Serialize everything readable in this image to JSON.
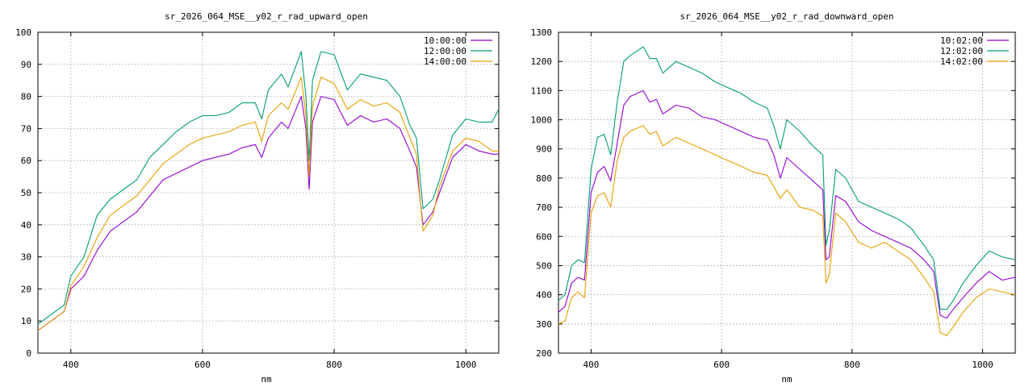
{
  "chart_data": [
    {
      "type": "line",
      "title": "sr_2026_064_MSE__y02_r_rad_upward_open",
      "xlabel": "nm",
      "ylabel": "",
      "xlim": [
        350,
        1050
      ],
      "ylim": [
        0,
        100
      ],
      "xticks": [
        400,
        600,
        800,
        1000
      ],
      "yticks": [
        0,
        10,
        20,
        30,
        40,
        50,
        60,
        70,
        80,
        90,
        100
      ],
      "grid": true,
      "legend": "top-right",
      "series": [
        {
          "name": "10:00:00",
          "color": "#9400d3",
          "x": [
            350,
            370,
            390,
            400,
            420,
            440,
            460,
            480,
            500,
            520,
            540,
            560,
            580,
            600,
            620,
            640,
            660,
            680,
            690,
            700,
            720,
            730,
            750,
            757,
            762,
            767,
            780,
            800,
            820,
            840,
            860,
            880,
            900,
            915,
            925,
            935,
            950,
            960,
            980,
            1000,
            1020,
            1040,
            1050
          ],
          "y": [
            7,
            10,
            13,
            20,
            24,
            32,
            38,
            41,
            44,
            49,
            54,
            56,
            58,
            60,
            61,
            62,
            64,
            65,
            61,
            67,
            72,
            70,
            80,
            70,
            51,
            72,
            80,
            79,
            71,
            74,
            72,
            73,
            70,
            63,
            58,
            40,
            44,
            50,
            61,
            65,
            63,
            62,
            62
          ]
        },
        {
          "name": "12:00:00",
          "color": "#009e73",
          "x": [
            350,
            370,
            390,
            400,
            420,
            440,
            460,
            480,
            500,
            520,
            540,
            560,
            580,
            600,
            620,
            640,
            660,
            680,
            690,
            700,
            720,
            730,
            750,
            757,
            762,
            767,
            780,
            800,
            820,
            840,
            860,
            880,
            900,
            915,
            925,
            935,
            950,
            960,
            980,
            1000,
            1020,
            1040,
            1050
          ],
          "y": [
            9,
            12,
            15,
            24,
            30,
            43,
            48,
            51,
            54,
            61,
            65,
            69,
            72,
            74,
            74,
            75,
            78,
            78,
            73,
            82,
            87,
            83,
            94,
            80,
            60,
            85,
            94,
            93,
            82,
            87,
            86,
            85,
            80,
            71,
            67,
            45,
            48,
            54,
            68,
            73,
            72,
            72,
            76
          ]
        },
        {
          "name": "14:00:00",
          "color": "#e69f00",
          "x": [
            350,
            370,
            390,
            400,
            420,
            440,
            460,
            480,
            500,
            520,
            540,
            560,
            580,
            600,
            620,
            640,
            660,
            680,
            690,
            700,
            720,
            730,
            750,
            757,
            762,
            767,
            780,
            800,
            820,
            840,
            860,
            880,
            900,
            915,
            925,
            935,
            950,
            960,
            980,
            1000,
            1020,
            1040,
            1050
          ],
          "y": [
            7,
            10,
            13,
            21,
            27,
            36,
            43,
            46,
            49,
            54,
            59,
            62,
            65,
            67,
            68,
            69,
            71,
            72,
            66,
            74,
            78,
            76,
            86,
            74,
            55,
            77,
            86,
            84,
            76,
            79,
            77,
            78,
            75,
            67,
            62,
            38,
            43,
            52,
            63,
            67,
            66,
            63,
            63
          ]
        }
      ]
    },
    {
      "type": "line",
      "title": "sr_2026_064_MSE__y02_r_rad_downward_open",
      "xlabel": "nm",
      "ylabel": "",
      "xlim": [
        350,
        1050
      ],
      "ylim": [
        200,
        1300
      ],
      "xticks": [
        400,
        600,
        800,
        1000
      ],
      "yticks": [
        200,
        300,
        400,
        500,
        600,
        700,
        800,
        900,
        1000,
        1100,
        1200,
        1300
      ],
      "grid": true,
      "legend": "top-right",
      "series": [
        {
          "name": "10:02:00",
          "color": "#9400d3",
          "x": [
            350,
            360,
            370,
            380,
            390,
            400,
            410,
            420,
            430,
            440,
            450,
            460,
            480,
            490,
            500,
            510,
            530,
            550,
            570,
            590,
            610,
            630,
            650,
            670,
            680,
            690,
            700,
            720,
            740,
            755,
            760,
            765,
            775,
            790,
            810,
            830,
            850,
            870,
            890,
            910,
            925,
            935,
            945,
            955,
            970,
            990,
            1010,
            1030,
            1050
          ],
          "y": [
            340,
            360,
            440,
            460,
            450,
            750,
            820,
            840,
            790,
            920,
            1050,
            1080,
            1100,
            1060,
            1070,
            1020,
            1050,
            1040,
            1010,
            1000,
            980,
            960,
            940,
            930,
            880,
            800,
            870,
            830,
            790,
            760,
            520,
            530,
            740,
            720,
            650,
            620,
            600,
            580,
            560,
            520,
            480,
            330,
            320,
            350,
            390,
            440,
            480,
            450,
            460
          ]
        },
        {
          "name": "12:02:00",
          "color": "#009e73",
          "x": [
            350,
            360,
            370,
            380,
            390,
            400,
            410,
            420,
            430,
            440,
            450,
            460,
            480,
            490,
            500,
            510,
            530,
            550,
            570,
            590,
            610,
            630,
            650,
            670,
            680,
            690,
            700,
            720,
            740,
            755,
            760,
            765,
            775,
            790,
            810,
            830,
            850,
            870,
            890,
            910,
            925,
            935,
            945,
            955,
            970,
            990,
            1010,
            1030,
            1050
          ],
          "y": [
            380,
            400,
            500,
            520,
            510,
            830,
            940,
            950,
            880,
            1060,
            1200,
            1220,
            1250,
            1210,
            1210,
            1160,
            1200,
            1180,
            1160,
            1130,
            1110,
            1090,
            1060,
            1040,
            980,
            900,
            1000,
            960,
            910,
            880,
            570,
            620,
            830,
            800,
            720,
            700,
            680,
            660,
            630,
            570,
            520,
            350,
            350,
            380,
            440,
            500,
            550,
            530,
            520
          ]
        },
        {
          "name": "14:02:00",
          "color": "#e69f00",
          "x": [
            350,
            360,
            370,
            380,
            390,
            400,
            410,
            420,
            430,
            440,
            450,
            460,
            480,
            490,
            500,
            510,
            530,
            550,
            570,
            590,
            610,
            630,
            650,
            670,
            680,
            690,
            700,
            720,
            740,
            755,
            760,
            765,
            775,
            790,
            810,
            830,
            850,
            870,
            890,
            910,
            925,
            935,
            945,
            955,
            970,
            990,
            1010,
            1030,
            1050
          ],
          "y": [
            300,
            310,
            390,
            410,
            390,
            680,
            740,
            750,
            700,
            860,
            940,
            960,
            980,
            950,
            960,
            910,
            940,
            920,
            900,
            880,
            860,
            840,
            820,
            810,
            770,
            730,
            760,
            700,
            690,
            670,
            440,
            470,
            680,
            650,
            580,
            560,
            580,
            550,
            520,
            460,
            410,
            270,
            260,
            290,
            340,
            390,
            420,
            410,
            400
          ]
        }
      ]
    }
  ]
}
